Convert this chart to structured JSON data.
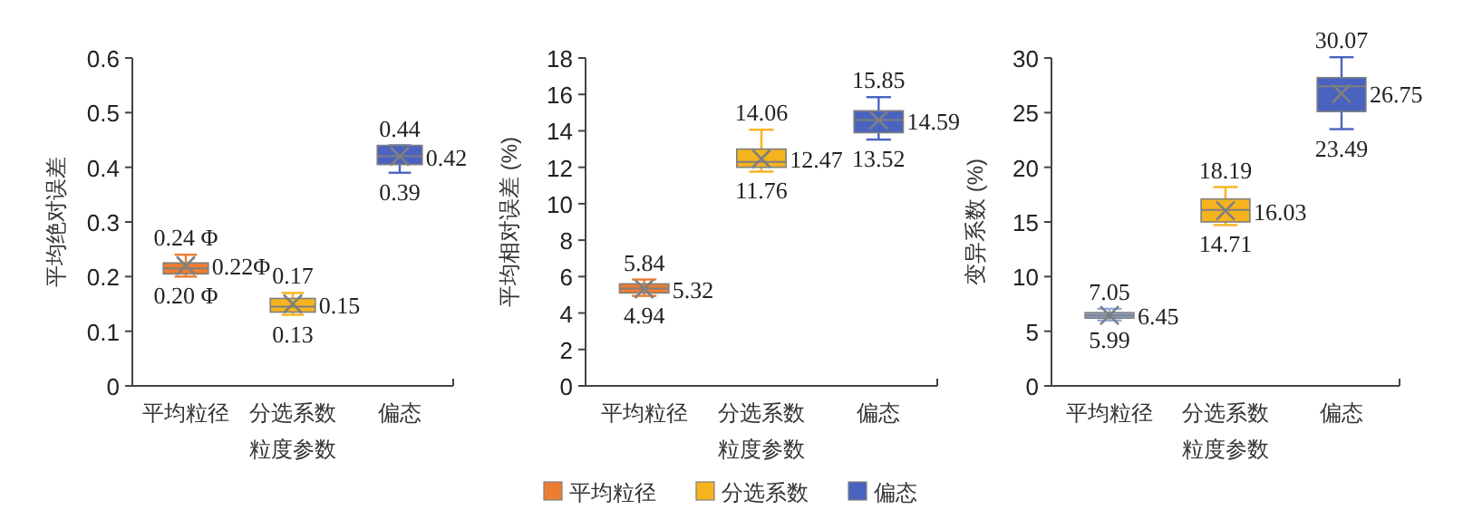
{
  "chart_data": [
    {
      "type": "box",
      "xlabel": "粒度参数",
      "ylabel": "平均绝对误差",
      "categories": [
        "平均粒径",
        "分选系数",
        "偏态"
      ],
      "ylim": [
        0,
        0.6
      ],
      "yticks": [
        0,
        0.1,
        0.2,
        0.3,
        0.4,
        0.5,
        0.6
      ],
      "legend": "bottom",
      "annotations": [
        {
          "text": "0.24 Φ",
          "x": "平均粒径",
          "y": 0.24
        },
        {
          "text": "0.22Φ",
          "x": "平均粒径",
          "y": 0.22
        },
        {
          "text": "0.20 Φ",
          "x": "平均粒径",
          "y": 0.2
        },
        {
          "text": "0.17",
          "x": "分选系数",
          "y": 0.17
        },
        {
          "text": "0.15",
          "x": "分选系数",
          "y": 0.15
        },
        {
          "text": "0.13",
          "x": "分选系数",
          "y": 0.13
        },
        {
          "text": "0.44",
          "x": "偏态",
          "y": 0.44
        },
        {
          "text": "0.42",
          "x": "偏态",
          "y": 0.42
        },
        {
          "text": "0.39",
          "x": "偏态",
          "y": 0.39
        }
      ],
      "series": [
        {
          "name": "平均粒径",
          "color": "#ed7d31",
          "boxes": [
            {
              "low": 0.2,
              "q1": 0.205,
              "median": 0.215,
              "q3": 0.225,
              "high": 0.24,
              "mean": 0.22
            },
            null,
            null
          ]
        },
        {
          "name": "分选系数",
          "color": "#f5b41e",
          "boxes": [
            null,
            {
              "low": 0.13,
              "q1": 0.135,
              "median": 0.145,
              "q3": 0.16,
              "high": 0.17,
              "mean": 0.15
            },
            null
          ]
        },
        {
          "name": "偏态",
          "color": "#4a63c0",
          "boxes": [
            null,
            null,
            {
              "low": 0.39,
              "q1": 0.405,
              "median": 0.42,
              "q3": 0.44,
              "high": 0.44,
              "mean": 0.42
            }
          ]
        }
      ]
    },
    {
      "type": "box",
      "xlabel": "粒度参数",
      "ylabel": "平均相对误差 (%)",
      "categories": [
        "平均粒径",
        "分选系数",
        "偏态"
      ],
      "ylim": [
        0,
        18
      ],
      "yticks": [
        0,
        2,
        4,
        6,
        8,
        10,
        12,
        14,
        16,
        18
      ],
      "annotations": [
        {
          "text": "5.84",
          "x": "平均粒径",
          "y": 5.84
        },
        {
          "text": "5.32",
          "x": "平均粒径",
          "y": 5.32
        },
        {
          "text": "4.94",
          "x": "平均粒径",
          "y": 4.94
        },
        {
          "text": "14.06",
          "x": "分选系数",
          "y": 14.06
        },
        {
          "text": "12.47",
          "x": "分选系数",
          "y": 12.47
        },
        {
          "text": "11.76",
          "x": "分选系数",
          "y": 11.76
        },
        {
          "text": "15.85",
          "x": "偏态",
          "y": 15.85
        },
        {
          "text": "14.59",
          "x": "偏态",
          "y": 14.59
        },
        {
          "text": "13.52",
          "x": "偏态",
          "y": 13.52
        }
      ],
      "series": [
        {
          "color": "#ed7d31",
          "boxes": [
            {
              "low": 4.94,
              "q1": 5.1,
              "median": 5.35,
              "q3": 5.6,
              "high": 5.84,
              "mean": 5.32
            },
            null,
            null
          ]
        },
        {
          "color": "#f5b41e",
          "boxes": [
            null,
            {
              "low": 11.76,
              "q1": 12.0,
              "median": 12.3,
              "q3": 13.0,
              "high": 14.06,
              "mean": 12.47
            },
            null
          ]
        },
        {
          "color": "#4a63c0",
          "boxes": [
            null,
            null,
            {
              "low": 13.52,
              "q1": 13.9,
              "median": 14.6,
              "q3": 15.1,
              "high": 15.85,
              "mean": 14.59
            }
          ]
        }
      ]
    },
    {
      "type": "box",
      "xlabel": "粒度参数",
      "ylabel": "变异系数 (%)",
      "categories": [
        "平均粒径",
        "分选系数",
        "偏态"
      ],
      "ylim": [
        0,
        30
      ],
      "yticks": [
        0,
        5,
        10,
        15,
        20,
        25,
        30
      ],
      "annotations": [
        {
          "text": "7.05",
          "x": "平均粒径",
          "y": 7.05
        },
        {
          "text": "6.45",
          "x": "平均粒径",
          "y": 6.45
        },
        {
          "text": "5.99",
          "x": "平均粒径",
          "y": 5.99
        },
        {
          "text": "18.19",
          "x": "分选系数",
          "y": 18.19
        },
        {
          "text": "16.03",
          "x": "分选系数",
          "y": 16.03
        },
        {
          "text": "14.71",
          "x": "分选系数",
          "y": 14.71
        },
        {
          "text": "30.07",
          "x": "偏态",
          "y": 30.07
        },
        {
          "text": "26.75",
          "x": "偏态",
          "y": 26.75
        },
        {
          "text": "23.49",
          "x": "偏态",
          "y": 23.49
        }
      ],
      "series": [
        {
          "color": "#8eaadb",
          "boxes": [
            {
              "low": 5.99,
              "q1": 6.2,
              "median": 6.45,
              "q3": 6.7,
              "high": 7.05,
              "mean": 6.45
            },
            null,
            null
          ]
        },
        {
          "color": "#f5b41e",
          "boxes": [
            null,
            {
              "low": 14.71,
              "q1": 15.0,
              "median": 16.1,
              "q3": 17.1,
              "high": 18.19,
              "mean": 16.03
            },
            null
          ]
        },
        {
          "color": "#4a63c0",
          "boxes": [
            null,
            null,
            {
              "low": 23.49,
              "q1": 25.1,
              "median": 27.4,
              "q3": 28.2,
              "high": 30.07,
              "mean": 26.75
            }
          ]
        }
      ]
    }
  ]
}
